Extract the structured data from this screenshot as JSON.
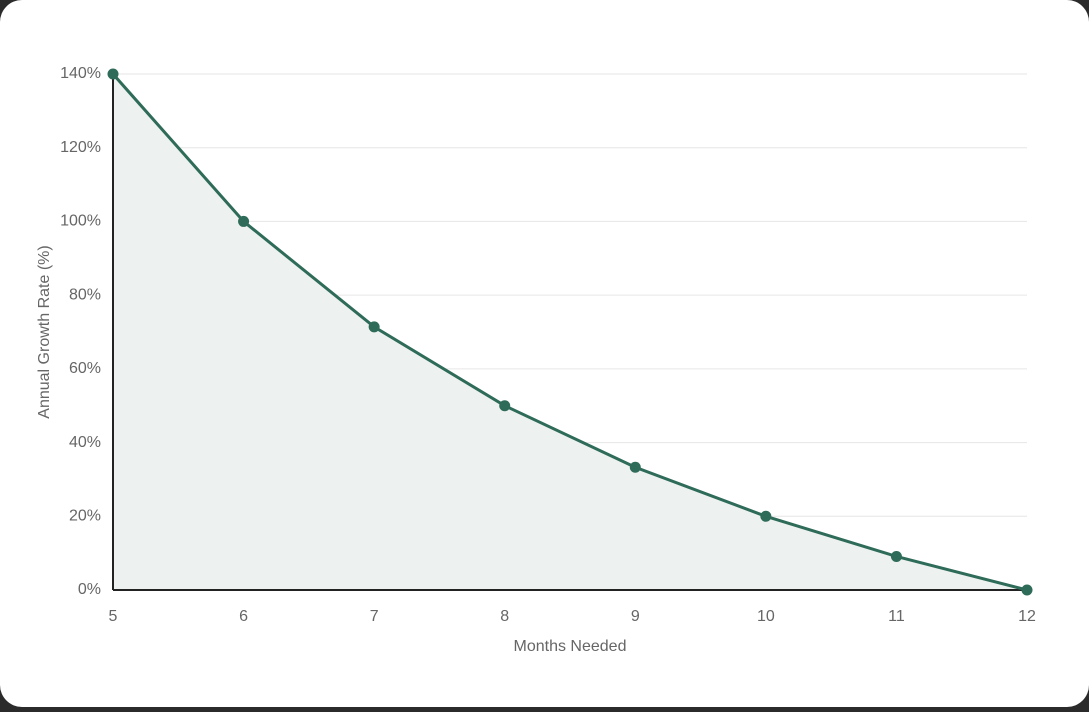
{
  "chart_data": {
    "type": "line",
    "x_label": "Months Needed",
    "y_label": "Annual Growth Rate (%)",
    "x": [
      5,
      6,
      7,
      8,
      9,
      10,
      11,
      12
    ],
    "series": [
      {
        "color": "#2e6b58",
        "values": [
          140,
          100,
          71.4,
          50,
          33.3,
          20,
          9.1,
          0
        ]
      }
    ],
    "area_color": "#edf1ef",
    "xlim": [
      5,
      12
    ],
    "xticks": [
      5,
      6,
      7,
      8,
      9,
      10,
      11,
      12
    ],
    "ylim": [
      0,
      140
    ],
    "yticks": [
      {
        "value": 0,
        "label": "0%"
      },
      {
        "value": 20,
        "label": "20%"
      },
      {
        "value": 40,
        "label": "40%"
      },
      {
        "value": 60,
        "label": "60%"
      },
      {
        "value": 80,
        "label": "80%"
      },
      {
        "value": 100,
        "label": "100%"
      },
      {
        "value": 120,
        "label": "120%"
      },
      {
        "value": 140,
        "label": "140%"
      }
    ],
    "grid": true
  }
}
